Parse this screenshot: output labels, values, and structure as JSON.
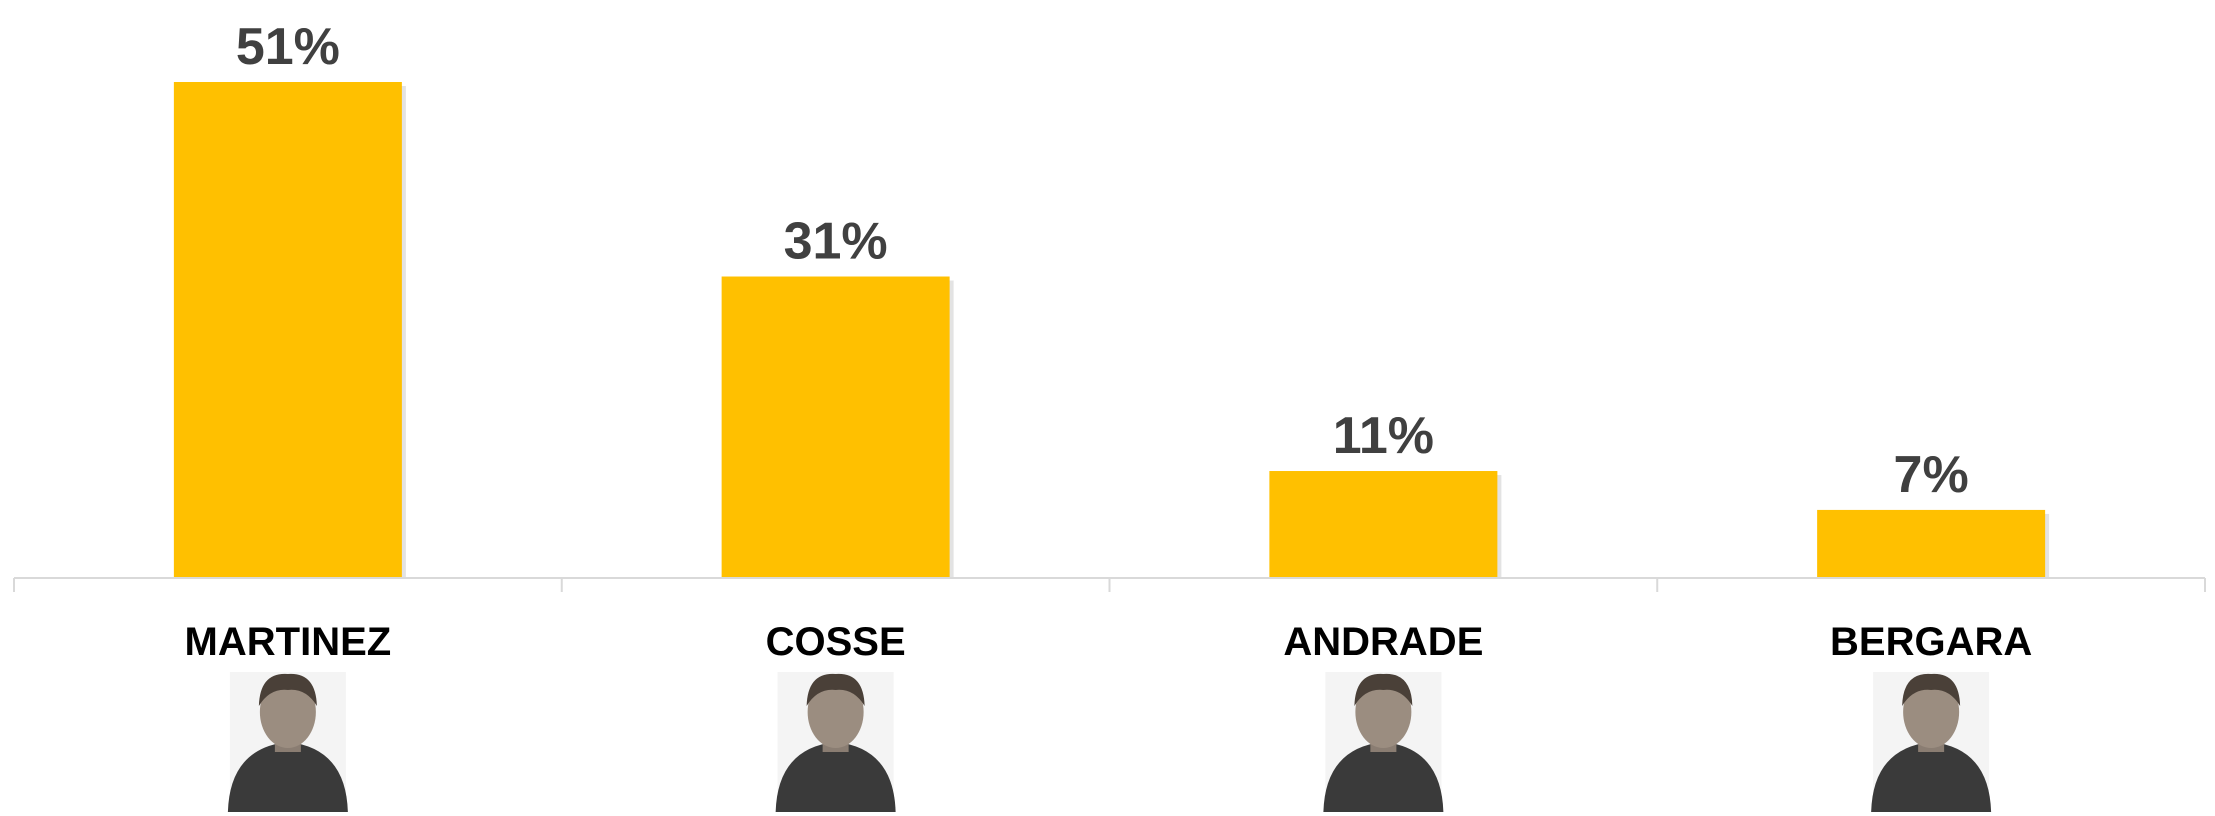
{
  "chart_data": {
    "type": "bar",
    "categories": [
      "MARTINEZ",
      "COSSE",
      "ANDRADE",
      "BERGARA"
    ],
    "values": [
      51,
      31,
      11,
      7
    ],
    "value_labels": [
      "51%",
      "31%",
      "11%",
      "7%"
    ],
    "ylim": [
      0,
      51
    ],
    "grid": false,
    "bar_color": "#FFC000",
    "label_color": "#404040",
    "axis_color": "#D9D9D9",
    "portraits": [
      "portrait-martinez",
      "portrait-cosse",
      "portrait-andrade",
      "portrait-bergara"
    ]
  }
}
